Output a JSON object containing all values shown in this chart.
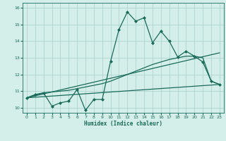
{
  "xlabel": "Humidex (Indice chaleur)",
  "bg_color": "#d4eeea",
  "grid_color": "#aacfcb",
  "line_color": "#1a6b5a",
  "xlim": [
    -0.5,
    23.5
  ],
  "ylim": [
    9.7,
    16.3
  ],
  "xticks": [
    0,
    1,
    2,
    3,
    4,
    5,
    6,
    7,
    8,
    9,
    10,
    11,
    12,
    13,
    14,
    15,
    16,
    17,
    18,
    19,
    20,
    21,
    22,
    23
  ],
  "yticks": [
    10,
    11,
    12,
    13,
    14,
    15,
    16
  ],
  "line1_x": [
    0,
    1,
    2,
    3,
    4,
    5,
    6,
    7,
    8,
    9,
    10,
    11,
    12,
    13,
    14,
    15,
    16,
    17,
    18,
    19,
    20,
    21,
    22,
    23
  ],
  "line1_y": [
    10.6,
    10.8,
    10.9,
    10.1,
    10.3,
    10.4,
    11.1,
    9.85,
    10.5,
    10.5,
    12.8,
    14.7,
    15.75,
    15.2,
    15.4,
    13.9,
    14.6,
    14.0,
    13.05,
    13.4,
    13.1,
    12.75,
    11.6,
    11.4
  ],
  "line2_x": [
    0,
    1,
    2,
    3,
    4,
    5,
    6,
    7,
    8,
    9,
    10,
    11,
    12,
    13,
    14,
    15,
    16,
    17,
    18,
    19,
    20,
    21,
    22,
    23
  ],
  "line2_y": [
    10.6,
    10.75,
    10.9,
    10.95,
    11.0,
    11.05,
    11.15,
    11.25,
    11.35,
    11.45,
    11.6,
    11.8,
    12.0,
    12.2,
    12.4,
    12.6,
    12.75,
    12.9,
    13.0,
    13.1,
    13.1,
    13.0,
    11.6,
    11.4
  ],
  "line3_x": [
    0,
    23
  ],
  "line3_y": [
    10.6,
    11.4
  ],
  "line4_x": [
    0,
    23
  ],
  "line4_y": [
    10.6,
    13.3
  ]
}
